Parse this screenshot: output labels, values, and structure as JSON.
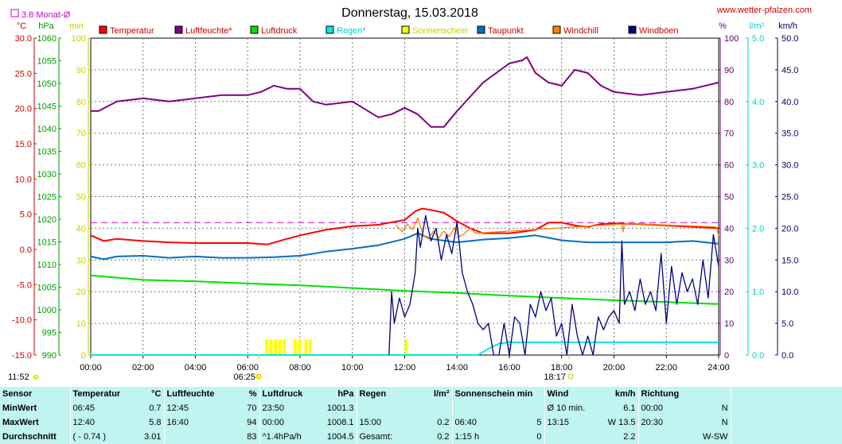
{
  "chart_data": {
    "type": "line",
    "title": "Donnerstag, 15.03.2018",
    "watermark": "www.wetter-pfalzen.com",
    "month_avg_label": "3.8 Monat-Ø",
    "month_avg_value": 3.8,
    "x_ticks": [
      "00:00",
      "02:00",
      "04:00",
      "06:00",
      "08:00",
      "10:00",
      "12:00",
      "14:00",
      "16:00",
      "18:00",
      "20:00",
      "22:00",
      "24:00"
    ],
    "x_range": [
      0,
      24
    ],
    "left_axes": [
      {
        "unit": "°C",
        "range": [
          -15,
          30
        ],
        "ticks": [
          "30.0",
          "25.0",
          "20.0",
          "15.0",
          "10.0",
          "5.0",
          "0.0",
          "-5.0",
          "-10.0",
          "-15.0"
        ],
        "color": "#cc0000"
      },
      {
        "unit": "hPa",
        "range": [
          990,
          1060
        ],
        "ticks": [
          "1060",
          "1055",
          "1050",
          "1045",
          "1040",
          "1035",
          "1030",
          "1025",
          "1020",
          "1015",
          "1010",
          "1005",
          "1000",
          "995",
          "990"
        ],
        "color": "#009900"
      },
      {
        "unit": "min",
        "range": [
          0,
          100
        ],
        "ticks": [
          "100",
          "90",
          "80",
          "70",
          "60",
          "50",
          "40",
          "30",
          "20",
          "10",
          "0"
        ],
        "color": "#cccc00"
      }
    ],
    "right_axes": [
      {
        "unit": "%",
        "range": [
          0,
          100
        ],
        "ticks": [
          "100",
          "90",
          "80",
          "70",
          "60",
          "50",
          "40",
          "30",
          "20",
          "10",
          "0"
        ],
        "color": "#660066"
      },
      {
        "unit": "l/m²",
        "range": [
          0,
          5
        ],
        "ticks": [
          "5.0",
          "4.0",
          "3.0",
          "2.0",
          "1.0",
          "0.0"
        ],
        "color": "#00cccc"
      },
      {
        "unit": "km/h",
        "range": [
          0,
          50
        ],
        "ticks": [
          "50.0",
          "45.0",
          "40.0",
          "35.0",
          "30.0",
          "25.0",
          "20.0",
          "15.0",
          "10.0",
          "5.0",
          "0.0"
        ],
        "color": "#000066"
      }
    ],
    "sunrise": {
      "time": "06:25",
      "hour": 6.42
    },
    "sunset": {
      "time": "18:17",
      "hour": 18.28
    },
    "marker_left": "11:52",
    "series": [
      {
        "name": "Temperatur",
        "color": "#ff0000",
        "axis": "°C",
        "x": [
          0,
          0.5,
          1,
          2,
          3,
          4,
          5,
          6,
          6.75,
          7.5,
          8,
          9,
          10,
          11,
          12,
          12.4,
          12.67,
          13,
          13.5,
          14,
          14.5,
          15,
          15.5,
          16,
          16.5,
          17,
          17.5,
          18,
          18.5,
          19,
          19.5,
          20,
          21,
          22,
          23,
          24
        ],
        "y": [
          2.0,
          1.2,
          1.5,
          1.2,
          1.0,
          0.9,
          0.9,
          0.9,
          0.7,
          1.5,
          2.0,
          2.8,
          3.3,
          3.5,
          4.2,
          5.4,
          5.8,
          5.6,
          5.2,
          4.0,
          3.0,
          2.3,
          2.3,
          2.3,
          2.5,
          2.8,
          3.8,
          3.8,
          3.4,
          3.2,
          3.6,
          3.7,
          3.6,
          3.4,
          3.2,
          3.0
        ]
      },
      {
        "name": "Luftfeuchte*",
        "color": "#800080",
        "axis": "%",
        "x": [
          0,
          0.3,
          1,
          2,
          3,
          4,
          5,
          6,
          6.5,
          7,
          7.5,
          8,
          8.5,
          9,
          10,
          11,
          11.5,
          12,
          12.5,
          13,
          13.5,
          14,
          15,
          16,
          16.5,
          16.67,
          17,
          17.5,
          18,
          18.5,
          19,
          19.5,
          20,
          21,
          22,
          23,
          24
        ],
        "y": [
          77,
          77,
          80,
          81,
          80,
          81,
          82,
          82,
          83,
          85,
          84,
          84,
          80,
          79,
          80,
          75,
          76,
          78,
          76,
          72,
          72,
          77,
          86,
          92,
          93,
          94,
          89,
          86,
          85,
          90,
          89,
          85,
          83,
          82,
          83,
          84,
          86
        ]
      },
      {
        "name": "Luftdruck",
        "color": "#00e000",
        "axis": "hPa",
        "x": [
          0,
          2,
          4,
          6,
          8,
          10,
          12,
          14,
          16,
          18,
          20,
          22,
          23.83,
          24
        ],
        "y": [
          1007.6,
          1006.6,
          1006.3,
          1005.8,
          1005.4,
          1004.8,
          1004.2,
          1003.7,
          1003.1,
          1002.6,
          1002.1,
          1001.7,
          1001.3,
          1001.3
        ]
      },
      {
        "name": "Regen*",
        "color": "#00e8e8",
        "axis": "l/m²",
        "x": [
          0,
          14.8,
          15.2,
          15.6,
          16,
          24
        ],
        "y": [
          0,
          0,
          0.1,
          0.18,
          0.2,
          0.2
        ]
      },
      {
        "name": "Sonnenschein",
        "color": "#ffff00",
        "axis": "min",
        "x": [
          6.67,
          6.83,
          7.0,
          7.17,
          7.33,
          7.75,
          7.92,
          8.17,
          8.33,
          12.0
        ],
        "y": [
          5,
          5,
          5,
          5,
          5,
          5,
          5,
          5,
          5,
          5
        ]
      },
      {
        "name": "Taupunkt",
        "color": "#0070c0",
        "axis": "°C",
        "x": [
          0,
          0.5,
          1,
          2,
          3,
          4,
          5,
          6,
          7,
          8,
          9,
          10,
          11,
          12,
          12.5,
          13,
          14,
          15,
          16,
          17,
          18,
          19,
          20,
          21,
          22,
          23,
          24
        ],
        "y": [
          -1.0,
          -1.4,
          -1.0,
          -0.9,
          -1.2,
          -1.0,
          -1.2,
          -1.2,
          -1.1,
          -0.9,
          -0.3,
          0.1,
          0.6,
          1.5,
          2.3,
          1.5,
          1.0,
          1.4,
          1.6,
          2.0,
          1.3,
          1.0,
          1.0,
          1.0,
          1.0,
          1.2,
          0.8
        ]
      },
      {
        "name": "Windchill",
        "color": "#ff8000",
        "axis": "°C",
        "x": [
          11.67,
          11.9,
          12.1,
          12.3,
          12.5,
          12.7,
          12.9,
          13.1,
          13.3,
          13.5,
          13.7,
          13.9,
          14.1,
          14.3,
          14.5,
          14.7,
          20.3,
          20.35,
          20.4,
          23.9,
          24
        ],
        "y": [
          3.5,
          2.5,
          3.6,
          2.8,
          4.5,
          2.1,
          1.5,
          2.6,
          1.6,
          2.6,
          1.8,
          3.1,
          1.8,
          2.3,
          3.0,
          2.3,
          3.6,
          2.5,
          3.7,
          3.2,
          2.0
        ]
      },
      {
        "name": "Windböen",
        "color": "#000080",
        "axis": "km/h",
        "x": [
          11.4,
          11.5,
          11.6,
          11.8,
          12.0,
          12.2,
          12.4,
          12.5,
          12.6,
          12.8,
          13.0,
          13.2,
          13.4,
          13.6,
          13.8,
          14.0,
          14.2,
          14.4,
          14.6,
          14.8,
          15.0,
          15.2,
          15.4,
          15.6,
          15.8,
          16.0,
          16.2,
          16.4,
          16.6,
          16.8,
          17.0,
          17.2,
          17.4,
          17.6,
          17.8,
          18.0,
          18.2,
          18.4,
          18.6,
          18.8,
          19.0,
          19.2,
          19.4,
          19.6,
          19.8,
          20.0,
          20.2,
          20.3,
          20.4,
          20.6,
          20.8,
          21.0,
          21.2,
          21.4,
          21.6,
          21.8,
          22.0,
          22.2,
          22.4,
          22.6,
          22.8,
          23.0,
          23.2,
          23.4,
          23.6,
          23.8,
          24.0
        ],
        "y": [
          0,
          10,
          5,
          9,
          6,
          8,
          13,
          20,
          17,
          22,
          18,
          20,
          15,
          19,
          16,
          21,
          13,
          10,
          8,
          5,
          4,
          5,
          0,
          0,
          5,
          0,
          6,
          5,
          0,
          8,
          6,
          10,
          7,
          9,
          3,
          5,
          0,
          8,
          3,
          0,
          3,
          0,
          6,
          4,
          6,
          7,
          5,
          18,
          8,
          10,
          7,
          12,
          8,
          10,
          7,
          16,
          5,
          14,
          8,
          13,
          10,
          12,
          8,
          15,
          9,
          19,
          14
        ]
      }
    ]
  },
  "stats": {
    "header": {
      "sensor": "Sensor",
      "temp": "Temperatur",
      "temp_unit": "°C",
      "hum": "Luftfeuchte",
      "hum_unit": "%",
      "press": "Luftdruck",
      "press_unit": "hPa",
      "rain": "Regen",
      "rain_unit": "l/m²",
      "sun": "Sonnenschein min",
      "wind": "Wind",
      "wind_unit": "km/h",
      "dir": "Richtung"
    },
    "rows": [
      {
        "label": "MinWert",
        "temp_t": "06:45",
        "temp_v": "0.7",
        "hum_t": "12:45",
        "hum_v": "70",
        "press_t": "23:50",
        "press_v": "1001.3",
        "rain_t": "",
        "rain_v": "",
        "sun_t": "",
        "sun_v": "",
        "wind_t": "Ø 10 min.",
        "wind_v": "6.1",
        "dir_t": "00:00",
        "dir_v": "N"
      },
      {
        "label": "MaxWert",
        "temp_t": "12:40",
        "temp_v": "5.8",
        "hum_t": "16:40",
        "hum_v": "94",
        "press_t": "00:00",
        "press_v": "1008.1",
        "rain_t": "15:00",
        "rain_v": "0.2",
        "sun_t": "06:40",
        "sun_v": "5",
        "wind_t": "13:15",
        "wind_v": "W 13.5",
        "dir_t": "20:30",
        "dir_v": "N"
      },
      {
        "label": "Durchschnitt",
        "temp_t": "( - 0.74 )",
        "temp_v": "3.01",
        "hum_t": "",
        "hum_v": "83",
        "press_t": "^1.4hPa/h",
        "press_v": "1004.5",
        "rain_t": "Gesamt:",
        "rain_v": "0.2",
        "sun_t": "1:15 h",
        "sun_v": "0",
        "wind_t": "",
        "wind_v": "2.2",
        "dir_t": "",
        "dir_v": "W-SW"
      }
    ]
  }
}
